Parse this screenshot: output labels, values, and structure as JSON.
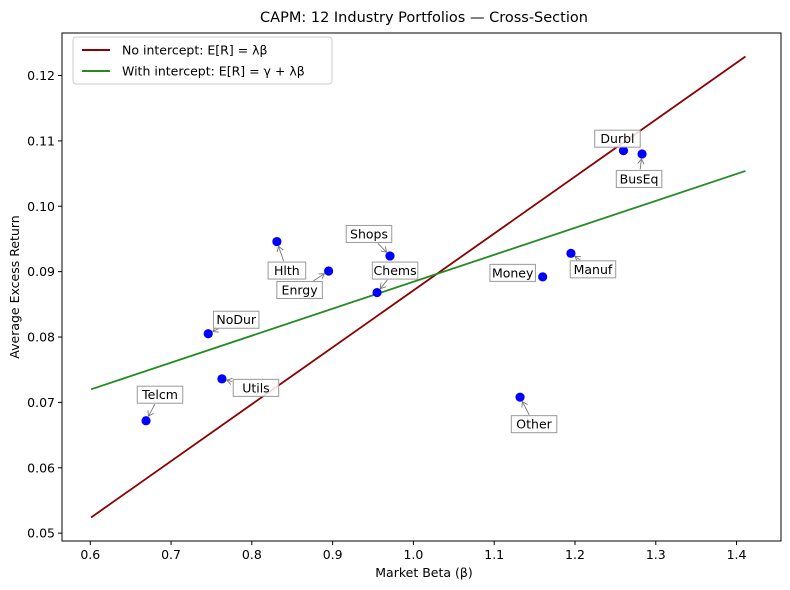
{
  "chart_data": {
    "type": "scatter",
    "title": "CAPM: 12 Industry Portfolios — Cross-Section",
    "xlabel": "Market Beta (β)",
    "ylabel": "Average Excess Return",
    "xlim": [
      0.565,
      1.455
    ],
    "ylim": [
      0.0488,
      0.1265
    ],
    "xticks": [
      0.6,
      0.7,
      0.8,
      0.9,
      1.0,
      1.1,
      1.2,
      1.3,
      1.4
    ],
    "xtick_labels": [
      "0.6",
      "0.7",
      "0.8",
      "0.9",
      "1.0",
      "1.1",
      "1.2",
      "1.3",
      "1.4"
    ],
    "yticks": [
      0.05,
      0.06,
      0.07,
      0.08,
      0.09,
      0.1,
      0.11,
      0.12
    ],
    "ytick_labels": [
      "0.05",
      "0.06",
      "0.07",
      "0.08",
      "0.09",
      "0.10",
      "0.11",
      "0.12"
    ],
    "grid": false,
    "legend_placement": "top-left",
    "points": {
      "color": "#0000ff",
      "data": [
        {
          "label": "Telcm",
          "x": 0.669,
          "y": 0.0672
        },
        {
          "label": "Utils",
          "x": 0.763,
          "y": 0.0736
        },
        {
          "label": "NoDur",
          "x": 0.746,
          "y": 0.0805
        },
        {
          "label": "Hlth",
          "x": 0.831,
          "y": 0.0946
        },
        {
          "label": "Enrgy",
          "x": 0.895,
          "y": 0.0901
        },
        {
          "label": "Chems",
          "x": 0.955,
          "y": 0.0868
        },
        {
          "label": "Shops",
          "x": 0.971,
          "y": 0.0924
        },
        {
          "label": "Other",
          "x": 1.132,
          "y": 0.0708
        },
        {
          "label": "Money",
          "x": 1.16,
          "y": 0.0892
        },
        {
          "label": "Manuf",
          "x": 1.195,
          "y": 0.0928
        },
        {
          "label": "Durbl",
          "x": 1.26,
          "y": 0.1085
        },
        {
          "label": "BusEq",
          "x": 1.283,
          "y": 0.108
        }
      ]
    },
    "series": [
      {
        "name": "No intercept: E[R] = λβ",
        "color": "#8b0000",
        "x": [
          0.601,
          1.411
        ],
        "y": [
          0.0524,
          0.1229
        ]
      },
      {
        "name": "With intercept: E[R] = γ + λβ",
        "color": "#228b22",
        "x": [
          0.601,
          1.411
        ],
        "y": [
          0.072,
          0.1054
        ]
      }
    ]
  }
}
